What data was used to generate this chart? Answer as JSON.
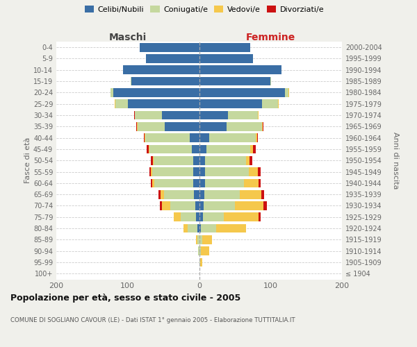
{
  "age_groups": [
    "100+",
    "95-99",
    "90-94",
    "85-89",
    "80-84",
    "75-79",
    "70-74",
    "65-69",
    "60-64",
    "55-59",
    "50-54",
    "45-49",
    "40-44",
    "35-39",
    "30-34",
    "25-29",
    "20-24",
    "15-19",
    "10-14",
    "5-9",
    "0-4"
  ],
  "birth_years": [
    "≤ 1904",
    "1905-1909",
    "1910-1914",
    "1915-1919",
    "1920-1924",
    "1925-1929",
    "1930-1934",
    "1935-1939",
    "1940-1944",
    "1945-1949",
    "1950-1954",
    "1955-1959",
    "1960-1964",
    "1965-1969",
    "1970-1974",
    "1975-1979",
    "1980-1984",
    "1985-1989",
    "1990-1994",
    "1995-1999",
    "2000-2004"
  ],
  "males_celibi": [
    0,
    0,
    0,
    0,
    2,
    4,
    5,
    7,
    8,
    8,
    8,
    10,
    13,
    48,
    52,
    100,
    120,
    95,
    107,
    74,
    83
  ],
  "males_coniugati": [
    0,
    0,
    1,
    2,
    14,
    22,
    35,
    42,
    55,
    58,
    56,
    60,
    62,
    38,
    38,
    17,
    4,
    1,
    0,
    0,
    0
  ],
  "males_vedovi": [
    0,
    0,
    0,
    2,
    6,
    10,
    12,
    5,
    3,
    2,
    1,
    1,
    1,
    1,
    0,
    1,
    0,
    0,
    0,
    0,
    0
  ],
  "males_divorziati": [
    0,
    0,
    0,
    0,
    0,
    0,
    3,
    3,
    2,
    2,
    3,
    2,
    1,
    1,
    1,
    0,
    0,
    0,
    0,
    0,
    0
  ],
  "females_nubili": [
    0,
    0,
    0,
    0,
    2,
    5,
    6,
    7,
    8,
    8,
    8,
    10,
    14,
    38,
    40,
    88,
    120,
    100,
    115,
    75,
    72
  ],
  "females_coniugate": [
    0,
    1,
    2,
    4,
    22,
    30,
    44,
    50,
    55,
    62,
    58,
    62,
    65,
    50,
    42,
    22,
    5,
    1,
    0,
    0,
    0
  ],
  "females_vedove": [
    0,
    3,
    12,
    14,
    42,
    48,
    40,
    30,
    20,
    12,
    5,
    3,
    2,
    1,
    1,
    1,
    1,
    0,
    0,
    0,
    0
  ],
  "females_divorziate": [
    0,
    0,
    0,
    0,
    0,
    3,
    5,
    4,
    3,
    4,
    3,
    4,
    1,
    1,
    0,
    0,
    0,
    0,
    0,
    0,
    0
  ],
  "color_celibi": "#3a6ea5",
  "color_coniugati": "#c5d89e",
  "color_vedovi": "#f5c84c",
  "color_divorziati": "#cc1111",
  "xlim": 200,
  "title": "Popolazione per età, sesso e stato civile - 2005",
  "subtitle": "COMUNE DI SOGLIANO CAVOUR (LE) - Dati ISTAT 1° gennaio 2005 - Elaborazione TUTTITALIA.IT",
  "ylabel_left": "Fasce di età",
  "ylabel_right": "Anni di nascita",
  "label_maschi": "Maschi",
  "label_femmine": "Femmine",
  "legend_labels": [
    "Celibi/Nubili",
    "Coniugati/e",
    "Vedovi/e",
    "Divorziati/e"
  ],
  "bg_color": "#f0f0eb",
  "plot_bg": "#ffffff"
}
